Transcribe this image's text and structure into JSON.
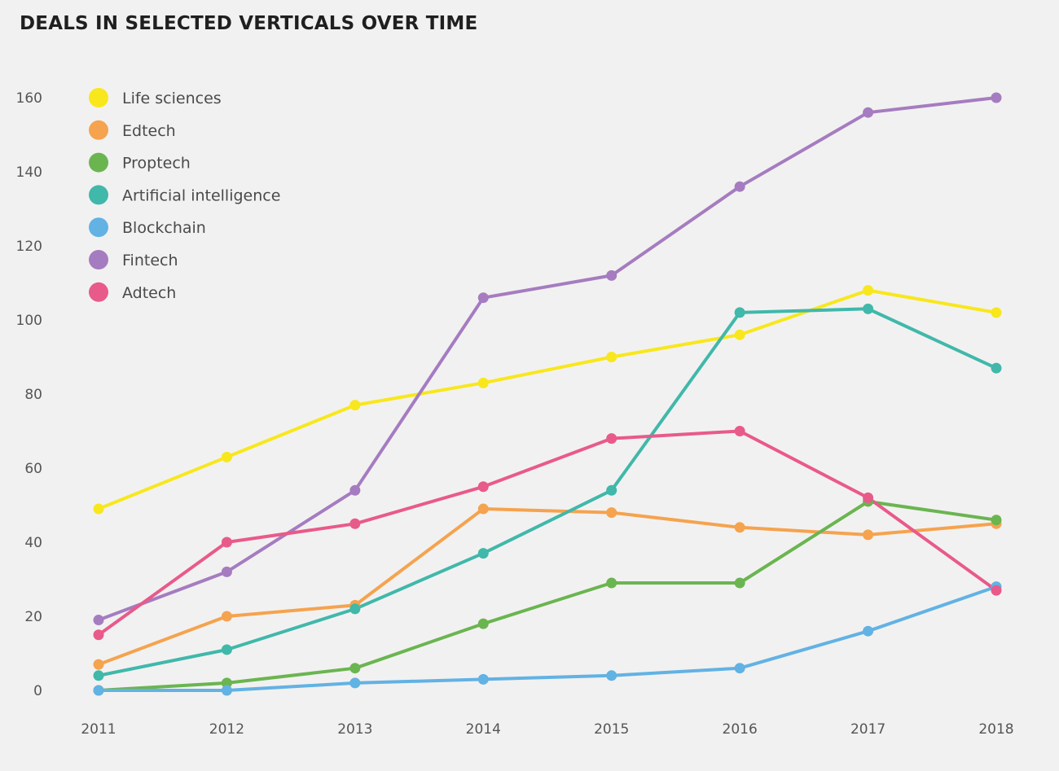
{
  "chart_data": {
    "type": "line",
    "title": "DEALS IN SELECTED VERTICALS OVER TIME",
    "xlabel": "",
    "ylabel": "",
    "x": [
      "2011",
      "2012",
      "2013",
      "2014",
      "2015",
      "2016",
      "2017",
      "2018"
    ],
    "ylim": [
      0,
      160
    ],
    "yticks": [
      0,
      20,
      40,
      60,
      80,
      100,
      120,
      140,
      160
    ],
    "grid": false,
    "legend_position": "top-left",
    "series": [
      {
        "name": "Life sciences",
        "color": "#f8e71c",
        "values": [
          49,
          63,
          77,
          83,
          90,
          96,
          108,
          102
        ]
      },
      {
        "name": "Edtech",
        "color": "#f5a34e",
        "values": [
          7,
          20,
          23,
          49,
          48,
          44,
          42,
          45
        ]
      },
      {
        "name": "Proptech",
        "color": "#6ab550",
        "values": [
          0,
          2,
          6,
          18,
          29,
          29,
          51,
          46
        ]
      },
      {
        "name": "Artificial intelligence",
        "color": "#40b8aa",
        "values": [
          4,
          11,
          22,
          37,
          54,
          102,
          103,
          87
        ]
      },
      {
        "name": "Blockchain",
        "color": "#62b2e4",
        "values": [
          0,
          0,
          2,
          3,
          4,
          6,
          16,
          28
        ]
      },
      {
        "name": "Fintech",
        "color": "#a57cc0",
        "values": [
          19,
          32,
          54,
          106,
          112,
          136,
          156,
          160
        ]
      },
      {
        "name": "Adtech",
        "color": "#e85a8a",
        "values": [
          15,
          40,
          45,
          55,
          68,
          70,
          52,
          27
        ]
      }
    ]
  }
}
